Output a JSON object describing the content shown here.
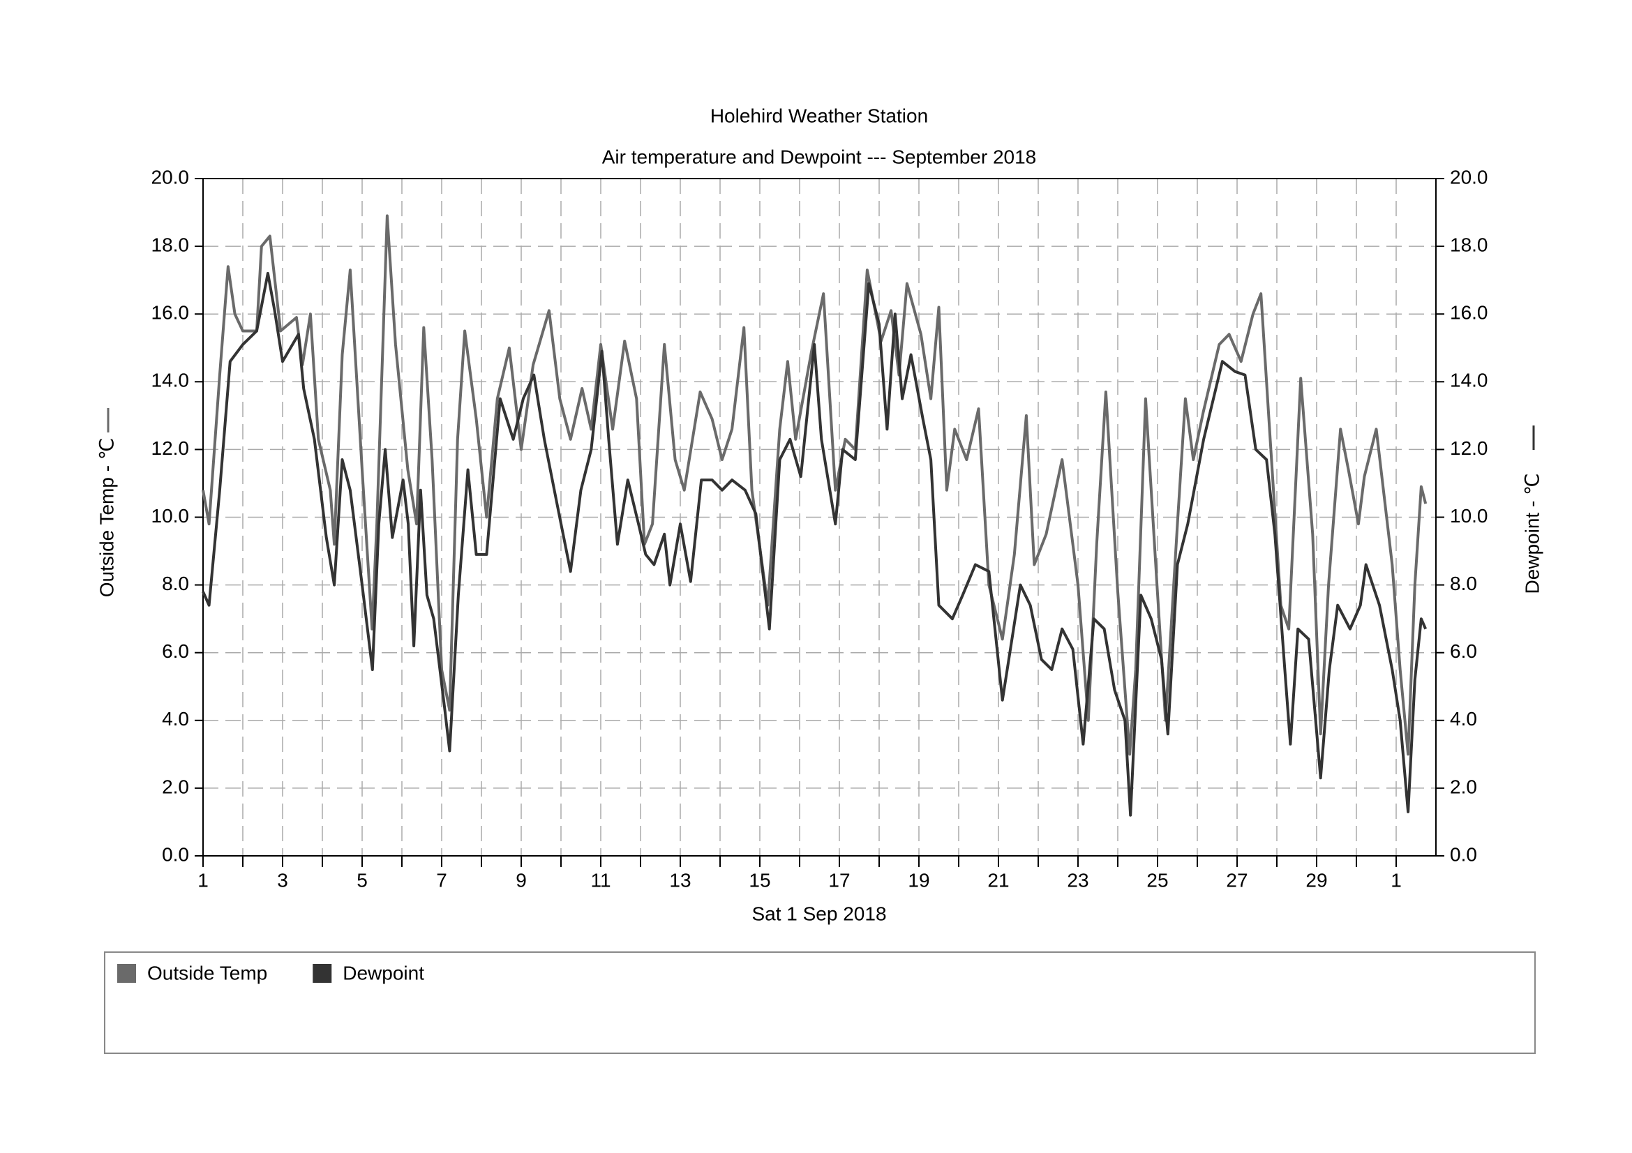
{
  "chart_data": {
    "type": "line",
    "title": "Holehird Weather Station",
    "subtitle": "Air temperature and Dewpoint --- September 2018",
    "xlabel": "Sat 1 Sep 2018",
    "ylabel": "Outside Temp - ℃",
    "y2label": "Dewpoint - ℃",
    "xlim": [
      0,
      31
    ],
    "xticks": [
      {
        "value": 0,
        "label": "1"
      },
      {
        "value": 2,
        "label": "3"
      },
      {
        "value": 4,
        "label": "5"
      },
      {
        "value": 6,
        "label": "7"
      },
      {
        "value": 8,
        "label": "9"
      },
      {
        "value": 10,
        "label": "11"
      },
      {
        "value": 12,
        "label": "13"
      },
      {
        "value": 14,
        "label": "15"
      },
      {
        "value": 16,
        "label": "17"
      },
      {
        "value": 18,
        "label": "19"
      },
      {
        "value": 20,
        "label": "21"
      },
      {
        "value": 22,
        "label": "23"
      },
      {
        "value": 24,
        "label": "25"
      },
      {
        "value": 26,
        "label": "27"
      },
      {
        "value": 28,
        "label": "29"
      },
      {
        "value": 30,
        "label": "1"
      }
    ],
    "xminor_ticks": [
      1,
      3,
      5,
      7,
      9,
      11,
      13,
      15,
      17,
      19,
      21,
      23,
      25,
      27,
      29
    ],
    "ylim": [
      0,
      20
    ],
    "yticks": [
      {
        "value": 0,
        "label": "0.0"
      },
      {
        "value": 2,
        "label": "2.0"
      },
      {
        "value": 4,
        "label": "4.0"
      },
      {
        "value": 6,
        "label": "6.0"
      },
      {
        "value": 8,
        "label": "8.0"
      },
      {
        "value": 10,
        "label": "10.0"
      },
      {
        "value": 12,
        "label": "12.0"
      },
      {
        "value": 14,
        "label": "14.0"
      },
      {
        "value": 16,
        "label": "16.0"
      },
      {
        "value": 18,
        "label": "18.0"
      },
      {
        "value": 20,
        "label": "20.0"
      }
    ],
    "y2lim": [
      0,
      20
    ],
    "y2ticks": [
      {
        "value": 0,
        "label": "0.0"
      },
      {
        "value": 2,
        "label": "2.0"
      },
      {
        "value": 4,
        "label": "4.0"
      },
      {
        "value": 6,
        "label": "6.0"
      },
      {
        "value": 8,
        "label": "8.0"
      },
      {
        "value": 10,
        "label": "10.0"
      },
      {
        "value": 12,
        "label": "12.0"
      },
      {
        "value": 14,
        "label": "14.0"
      },
      {
        "value": 16,
        "label": "16.0"
      },
      {
        "value": 18,
        "label": "18.0"
      },
      {
        "value": 20,
        "label": "20.0"
      }
    ],
    "grid": true,
    "series": [
      {
        "name": "Outside Temp",
        "color": "#6a6a6a",
        "x": [
          0,
          0.15,
          0.42,
          0.63,
          0.8,
          1.0,
          1.35,
          1.47,
          1.68,
          1.95,
          2.35,
          2.5,
          2.7,
          2.9,
          3.2,
          3.3,
          3.5,
          3.7,
          4.0,
          4.25,
          4.37,
          4.63,
          4.84,
          5.15,
          5.37,
          5.55,
          5.76,
          6.0,
          6.2,
          6.4,
          6.58,
          6.87,
          7.13,
          7.4,
          7.7,
          8.0,
          8.3,
          8.7,
          8.97,
          9.24,
          9.53,
          9.76,
          10.0,
          10.3,
          10.6,
          10.9,
          11.1,
          11.3,
          11.6,
          11.87,
          12.1,
          12.5,
          12.8,
          13.05,
          13.3,
          13.6,
          13.8,
          14.2,
          14.5,
          14.7,
          14.9,
          15.3,
          15.6,
          15.9,
          16.15,
          16.4,
          16.7,
          17.05,
          17.3,
          17.5,
          17.7,
          18.05,
          18.3,
          18.5,
          18.7,
          18.9,
          19.2,
          19.5,
          19.76,
          20.1,
          20.4,
          20.7,
          20.9,
          21.2,
          21.6,
          22.0,
          22.26,
          22.47,
          22.7,
          23.0,
          23.3,
          23.45,
          23.7,
          23.97,
          24.2,
          24.5,
          24.7,
          24.9,
          25.15,
          25.55,
          25.8,
          26.1,
          26.4,
          26.6,
          26.8,
          27.1,
          27.3,
          27.6,
          27.9,
          28.1,
          28.3,
          28.6,
          28.8,
          29.05,
          29.2,
          29.5,
          29.9,
          30.1,
          30.3,
          30.47,
          30.63,
          30.74
        ],
        "values": [
          10.8,
          9.8,
          14.2,
          17.4,
          16.0,
          15.5,
          15.5,
          18.0,
          18.3,
          15.5,
          15.9,
          14.5,
          16.0,
          12.3,
          10.8,
          9.2,
          14.8,
          17.3,
          11.4,
          6.7,
          9.8,
          18.9,
          15.1,
          11.4,
          9.8,
          15.6,
          11.7,
          5.5,
          4.3,
          12.3,
          15.5,
          12.9,
          10.0,
          13.5,
          15.0,
          12.0,
          14.5,
          16.1,
          13.5,
          12.3,
          13.8,
          12.6,
          15.1,
          12.6,
          15.2,
          13.5,
          9.2,
          9.8,
          15.1,
          11.7,
          10.8,
          13.7,
          12.9,
          11.7,
          12.6,
          15.6,
          10.8,
          7.4,
          12.6,
          14.6,
          12.3,
          14.9,
          16.6,
          10.8,
          12.3,
          12.0,
          17.3,
          15.2,
          16.1,
          14.2,
          16.9,
          15.4,
          13.5,
          16.2,
          10.8,
          12.6,
          11.7,
          13.2,
          8.0,
          6.4,
          8.9,
          13.0,
          8.6,
          9.5,
          11.7,
          8.0,
          4.0,
          9.2,
          13.7,
          7.8,
          3.0,
          5.5,
          13.5,
          8.3,
          4.0,
          9.8,
          13.5,
          11.7,
          13.1,
          15.1,
          15.4,
          14.6,
          16.0,
          16.6,
          12.9,
          7.4,
          6.7,
          14.1,
          9.5,
          3.6,
          8.0,
          12.6,
          11.4,
          9.8,
          11.2,
          12.6,
          8.6,
          5.5,
          3.0,
          8.0,
          10.9,
          10.4
        ]
      },
      {
        "name": "Dewpoint",
        "color": "#333333",
        "axis": "y2",
        "x": [
          0,
          0.15,
          0.42,
          0.68,
          1.0,
          1.35,
          1.63,
          1.8,
          2.0,
          2.4,
          2.53,
          2.8,
          3.1,
          3.3,
          3.5,
          3.7,
          4.0,
          4.26,
          4.42,
          4.58,
          4.76,
          5.03,
          5.16,
          5.3,
          5.47,
          5.63,
          5.8,
          6.08,
          6.2,
          6.42,
          6.66,
          6.87,
          7.13,
          7.47,
          7.8,
          8.05,
          8.32,
          8.58,
          8.9,
          9.24,
          9.5,
          9.76,
          10.03,
          10.2,
          10.42,
          10.68,
          10.95,
          11.13,
          11.34,
          11.6,
          11.74,
          12.0,
          12.26,
          12.53,
          12.8,
          13.05,
          13.3,
          13.63,
          13.9,
          14.24,
          14.5,
          14.76,
          15.03,
          15.37,
          15.55,
          15.9,
          16.08,
          16.4,
          16.74,
          17.0,
          17.2,
          17.4,
          17.58,
          17.8,
          18.1,
          18.3,
          18.5,
          18.84,
          19.1,
          19.42,
          19.76,
          20.1,
          20.3,
          20.55,
          20.8,
          21.08,
          21.34,
          21.6,
          21.87,
          22.13,
          22.4,
          22.66,
          22.92,
          23.18,
          23.32,
          23.58,
          23.84,
          24.1,
          24.26,
          24.5,
          24.76,
          25.16,
          25.63,
          25.95,
          26.2,
          26.47,
          26.74,
          26.95,
          27.2,
          27.34,
          27.53,
          27.8,
          28.1,
          28.32,
          28.53,
          28.84,
          29.1,
          29.24,
          29.58,
          29.9,
          30.1,
          30.3,
          30.47,
          30.63,
          30.74
        ],
        "values": [
          7.8,
          7.4,
          10.8,
          14.6,
          15.1,
          15.5,
          17.2,
          16.1,
          14.6,
          15.4,
          13.8,
          12.3,
          9.4,
          8.0,
          11.7,
          10.8,
          8.0,
          5.5,
          9.8,
          12.0,
          9.4,
          11.1,
          9.8,
          6.2,
          10.8,
          7.7,
          7.0,
          4.3,
          3.1,
          7.7,
          11.4,
          8.9,
          8.9,
          13.5,
          12.3,
          13.5,
          14.2,
          12.3,
          10.4,
          8.4,
          10.8,
          12.0,
          14.9,
          12.3,
          9.2,
          11.1,
          9.8,
          8.9,
          8.6,
          9.5,
          8.0,
          9.8,
          8.1,
          11.1,
          11.1,
          10.8,
          11.1,
          10.8,
          10.1,
          6.7,
          11.7,
          12.3,
          11.2,
          15.1,
          12.3,
          9.8,
          12.0,
          11.7,
          16.9,
          15.7,
          12.6,
          16.0,
          13.5,
          14.8,
          12.9,
          11.7,
          7.4,
          7.0,
          7.7,
          8.6,
          8.4,
          4.6,
          6.1,
          8.0,
          7.4,
          5.8,
          5.5,
          6.7,
          6.1,
          3.3,
          7.0,
          6.7,
          4.9,
          4.0,
          1.2,
          7.7,
          7.0,
          5.8,
          3.6,
          8.6,
          9.8,
          12.3,
          14.6,
          14.3,
          14.2,
          12.0,
          11.7,
          9.5,
          5.5,
          3.3,
          6.7,
          6.4,
          2.3,
          5.5,
          7.4,
          6.7,
          7.4,
          8.6,
          7.4,
          5.5,
          4.0,
          1.3,
          5.2,
          7.0,
          6.7
        ]
      }
    ]
  }
}
